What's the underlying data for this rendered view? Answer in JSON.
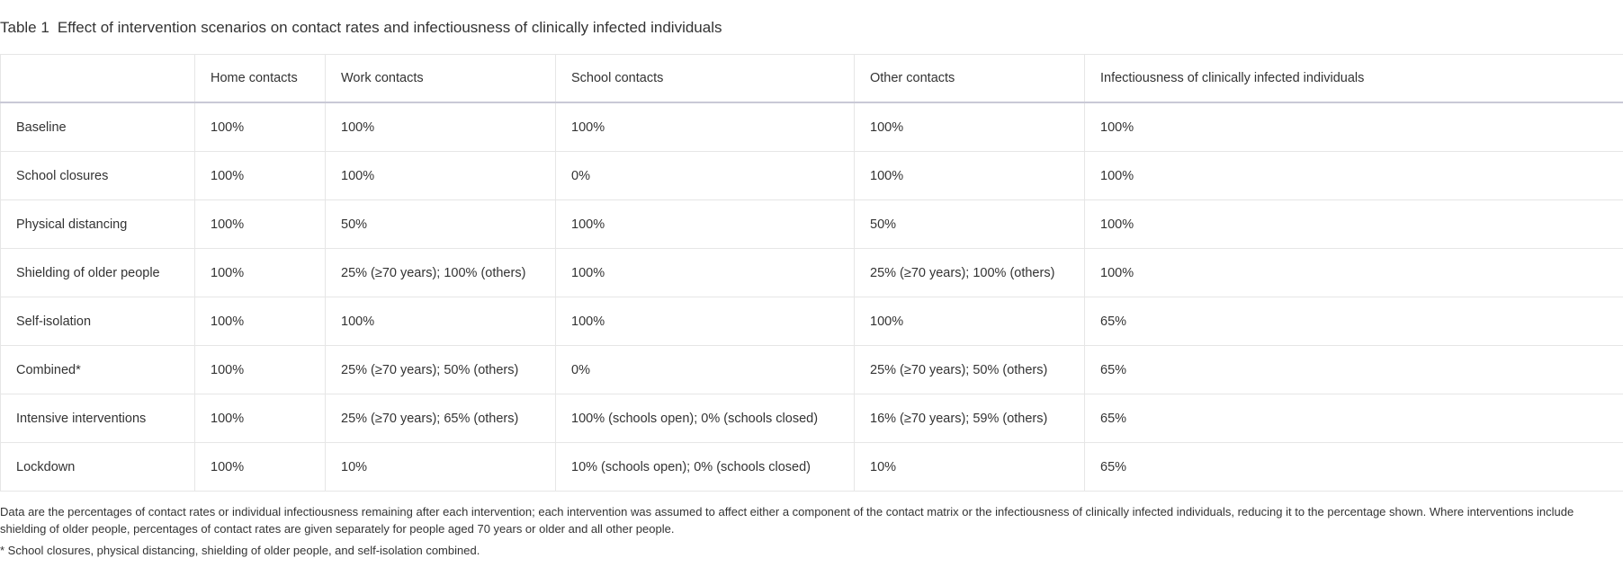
{
  "caption": {
    "label": "Table 1",
    "title": "Effect of intervention scenarios on contact rates and infectiousness of clinically infected individuals"
  },
  "table": {
    "headers": [
      "",
      "Home contacts",
      "Work contacts",
      "School contacts",
      "Other contacts",
      "Infectiousness of clinically infected individuals"
    ],
    "rows": [
      [
        "Baseline",
        "100%",
        "100%",
        "100%",
        "100%",
        "100%"
      ],
      [
        "School closures",
        "100%",
        "100%",
        "0%",
        "100%",
        "100%"
      ],
      [
        "Physical distancing",
        "100%",
        "50%",
        "100%",
        "50%",
        "100%"
      ],
      [
        "Shielding of older people",
        "100%",
        "25% (≥70 years); 100% (others)",
        "100%",
        "25% (≥70 years); 100% (others)",
        "100%"
      ],
      [
        "Self-isolation",
        "100%",
        "100%",
        "100%",
        "100%",
        "65%"
      ],
      [
        "Combined*",
        "100%",
        "25% (≥70 years); 50% (others)",
        "0%",
        "25% (≥70 years); 50% (others)",
        "65%"
      ],
      [
        "Intensive interventions",
        "100%",
        "25% (≥70 years); 65% (others)",
        "100% (schools open); 0% (schools closed)",
        "16% (≥70 years); 59% (others)",
        "65%"
      ],
      [
        "Lockdown",
        "100%",
        "10%",
        "10% (schools open); 0% (schools closed)",
        "10%",
        "65%"
      ]
    ]
  },
  "footnotes": {
    "note": "Data are the percentages of contact rates or individual infectiousness remaining after each intervention; each intervention was assumed to affect either a component of the contact matrix or the infectiousness of clinically infected individuals, reducing it to the percentage shown. Where interventions include shielding of older people, percentages of contact rates are given separately for people aged 70 years or older and all other people.",
    "asterisk": "* School closures, physical distancing, shielding of older people, and self-isolation combined."
  }
}
